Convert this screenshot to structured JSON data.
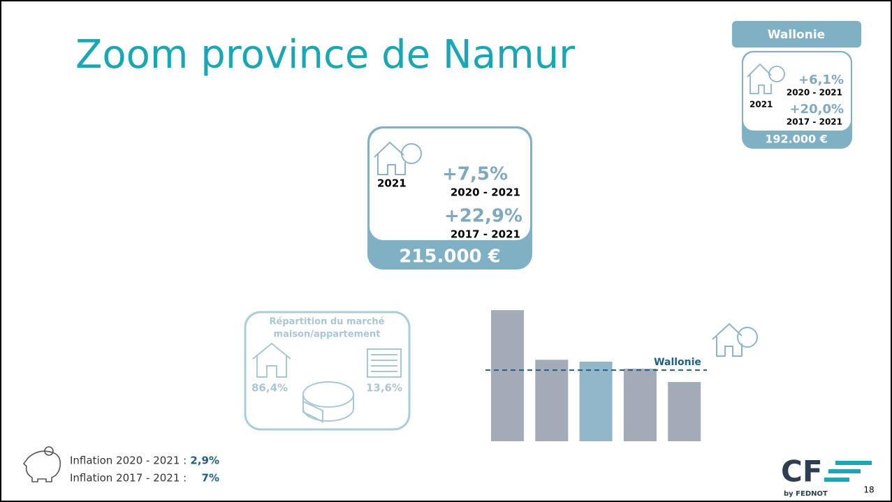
{
  "title": "Zoom province de Namur",
  "wallonie": {
    "header": "Wallonie",
    "year": "2021",
    "change1": "+6,1%",
    "period1": "2020 - 2021",
    "change2": "+20,0%",
    "period2": "2017 - 2021",
    "price": "192.000 €"
  },
  "namur": {
    "year": "2021",
    "change1": "+7,5%",
    "period1": "2020 - 2021",
    "change2": "+22,9%",
    "period2": "2017 - 2021",
    "price": "215.000 €"
  },
  "market": {
    "title": [
      "Répartition du marché",
      "maison/appartement"
    ],
    "house": "86,4%",
    "apartment": "13,6%"
  },
  "inflation": [
    {
      "label": "Inflation 2020 - 2021 :",
      "value": "2,9%"
    },
    {
      "label": "Inflation 2017 - 2021 :",
      "value": "7%"
    }
  ],
  "logo": {
    "mark": "CF",
    "by": "by FEDNOT"
  },
  "page_number": "18",
  "chart_data": {
    "type": "bar",
    "values": [
      354000,
      220000,
      215000,
      196000,
      160000
    ],
    "colors": [
      "#a3abb8",
      "#a3abb8",
      "#92b6ca",
      "#a3abb8",
      "#a3abb8"
    ],
    "ylim": [
      0,
      360000
    ],
    "reference": {
      "value": 192000,
      "label": "Wallonie",
      "color": "#1f5f80"
    }
  }
}
